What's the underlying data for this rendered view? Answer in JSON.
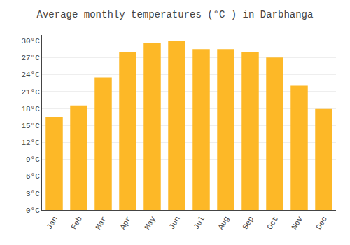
{
  "chart_data": {
    "type": "bar",
    "title": "Average monthly temperatures (°C ) in Darbhanga",
    "categories": [
      "Jan",
      "Feb",
      "Mar",
      "Apr",
      "May",
      "Jun",
      "Jul",
      "Aug",
      "Sep",
      "Oct",
      "Nov",
      "Dec"
    ],
    "values": [
      16.5,
      18.5,
      23.5,
      28.0,
      29.5,
      30.0,
      28.5,
      28.5,
      28.0,
      27.0,
      22.0,
      18.0
    ],
    "color": "#FDB827",
    "ylim": [
      0,
      31
    ],
    "yticks": [
      {
        "value": 0,
        "label": "0°C"
      },
      {
        "value": 3,
        "label": "3°C"
      },
      {
        "value": 6,
        "label": "6°C"
      },
      {
        "value": 9,
        "label": "9°C"
      },
      {
        "value": 12,
        "label": "12°C"
      },
      {
        "value": 15,
        "label": "15°C"
      },
      {
        "value": 18,
        "label": "18°C"
      },
      {
        "value": 21,
        "label": "21°C"
      },
      {
        "value": 24,
        "label": "24°C"
      },
      {
        "value": 27,
        "label": "27°C"
      },
      {
        "value": 30,
        "label": "30°C"
      }
    ],
    "grid": true
  }
}
